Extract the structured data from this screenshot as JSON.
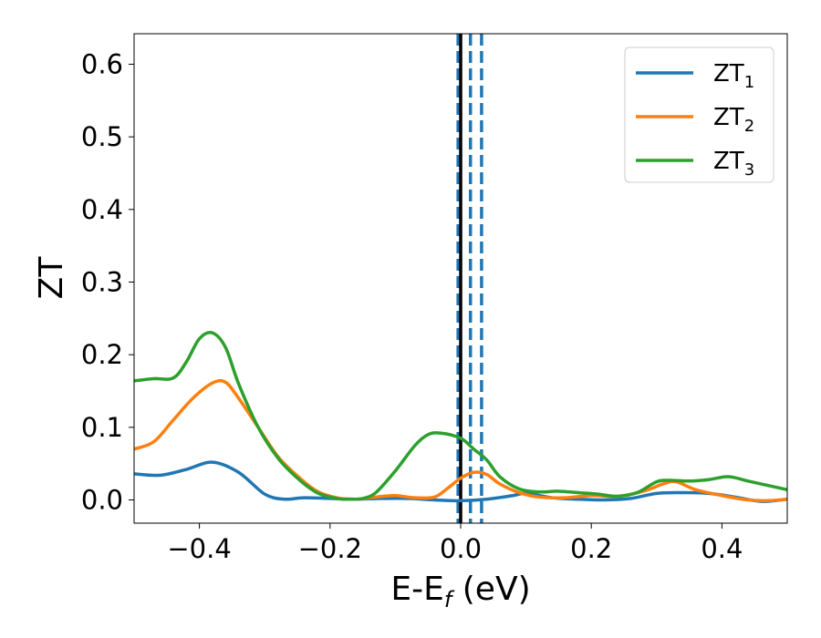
{
  "chart_data": {
    "type": "line",
    "title": "",
    "xlabel": "E-E",
    "xlabel_sub": "f",
    "xlabel_unit": " (eV)",
    "ylabel": "ZT",
    "xlim": [
      -0.5,
      0.5
    ],
    "ylim": [
      -0.032,
      0.642
    ],
    "xticks": [
      -0.4,
      -0.2,
      0.0,
      0.2,
      0.4
    ],
    "xtick_labels": [
      "−0.4",
      "−0.2",
      "0.0",
      "0.2",
      "0.4"
    ],
    "yticks": [
      0.0,
      0.1,
      0.2,
      0.3,
      0.4,
      0.5,
      0.6
    ],
    "ytick_labels": [
      "0.0",
      "0.1",
      "0.2",
      "0.3",
      "0.4",
      "0.5",
      "0.6"
    ],
    "grid": false,
    "legend_position": "top-right",
    "series": [
      {
        "name": "ZT",
        "sub": "1",
        "color": "#1f77b4",
        "x": [
          -0.5,
          -0.46,
          -0.42,
          -0.38,
          -0.34,
          -0.3,
          -0.27,
          -0.24,
          -0.2,
          -0.16,
          -0.12,
          -0.08,
          -0.04,
          0.0,
          0.04,
          0.08,
          0.1,
          0.14,
          0.18,
          0.22,
          0.26,
          0.3,
          0.34,
          0.38,
          0.42,
          0.46,
          0.5
        ],
        "values": [
          0.036,
          0.034,
          0.042,
          0.052,
          0.038,
          0.008,
          0.001,
          0.003,
          0.002,
          0.001,
          0.002,
          0.002,
          0.0,
          -0.001,
          0.001,
          0.006,
          0.009,
          0.003,
          0.001,
          0.0,
          0.002,
          0.009,
          0.01,
          0.009,
          0.004,
          -0.002,
          0.001
        ]
      },
      {
        "name": "ZT",
        "sub": "2",
        "color": "#ff7f0e",
        "x": [
          -0.5,
          -0.47,
          -0.44,
          -0.41,
          -0.38,
          -0.36,
          -0.34,
          -0.31,
          -0.28,
          -0.25,
          -0.22,
          -0.19,
          -0.16,
          -0.13,
          -0.1,
          -0.07,
          -0.04,
          -0.02,
          0.0,
          0.02,
          0.04,
          0.06,
          0.09,
          0.12,
          0.16,
          0.2,
          0.24,
          0.28,
          0.31,
          0.33,
          0.36,
          0.4,
          0.44,
          0.47,
          0.5
        ],
        "values": [
          0.07,
          0.08,
          0.11,
          0.14,
          0.161,
          0.162,
          0.14,
          0.1,
          0.06,
          0.033,
          0.012,
          0.003,
          0.001,
          0.004,
          0.006,
          0.003,
          0.004,
          0.016,
          0.03,
          0.038,
          0.035,
          0.022,
          0.01,
          0.004,
          0.003,
          0.006,
          0.005,
          0.012,
          0.022,
          0.025,
          0.014,
          0.006,
          0.0,
          -0.001,
          0.001
        ]
      },
      {
        "name": "ZT",
        "sub": "3",
        "color": "#2ca02c",
        "x": [
          -0.5,
          -0.47,
          -0.44,
          -0.42,
          -0.4,
          -0.38,
          -0.36,
          -0.34,
          -0.31,
          -0.28,
          -0.25,
          -0.22,
          -0.19,
          -0.17,
          -0.15,
          -0.13,
          -0.1,
          -0.07,
          -0.05,
          -0.03,
          0.0,
          0.02,
          0.04,
          0.06,
          0.09,
          0.12,
          0.15,
          0.18,
          0.21,
          0.24,
          0.27,
          0.3,
          0.32,
          0.35,
          0.38,
          0.41,
          0.44,
          0.47,
          0.5
        ],
        "values": [
          0.164,
          0.167,
          0.168,
          0.19,
          0.222,
          0.23,
          0.21,
          0.16,
          0.1,
          0.058,
          0.03,
          0.01,
          0.002,
          0.001,
          0.002,
          0.01,
          0.04,
          0.075,
          0.09,
          0.092,
          0.085,
          0.07,
          0.055,
          0.032,
          0.015,
          0.011,
          0.012,
          0.01,
          0.008,
          0.005,
          0.01,
          0.025,
          0.027,
          0.026,
          0.028,
          0.032,
          0.026,
          0.02,
          0.014
        ]
      }
    ],
    "vertical_lines": [
      {
        "x": 0.0,
        "style": "solid",
        "color": "#000000"
      },
      {
        "x": -0.004,
        "style": "dashed",
        "color": "#1f77b4"
      },
      {
        "x": 0.015,
        "style": "dashed",
        "color": "#1f77b4"
      },
      {
        "x": 0.032,
        "style": "dashed",
        "color": "#1f77b4"
      }
    ]
  }
}
